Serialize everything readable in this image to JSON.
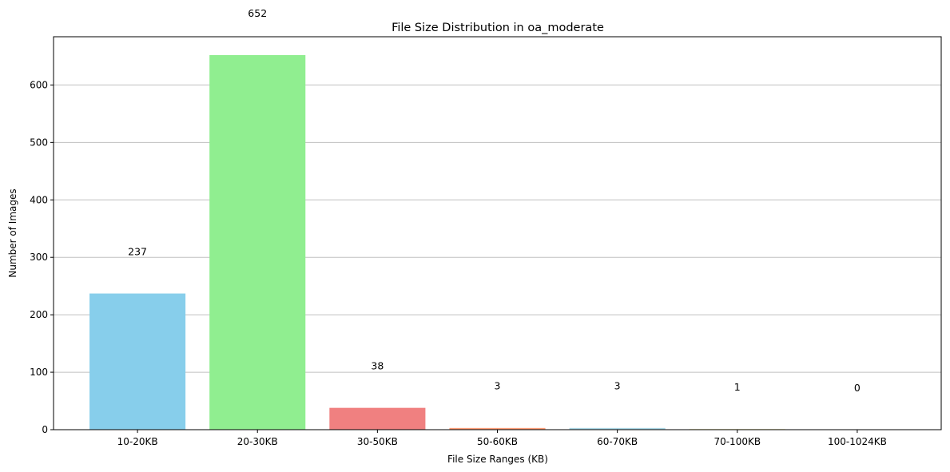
{
  "chart_data": {
    "type": "bar",
    "title": "File Size Distribution in oa_moderate",
    "xlabel": "File Size Ranges (KB)",
    "ylabel": "Number of Images",
    "categories": [
      "10-20KB",
      "20-30KB",
      "30-50KB",
      "50-60KB",
      "60-70KB",
      "70-100KB",
      "100-1024KB"
    ],
    "values": [
      237,
      652,
      38,
      3,
      3,
      1,
      0
    ],
    "data_labels": [
      "237",
      "652",
      "38",
      "3",
      "3",
      "1",
      "0"
    ],
    "colors": [
      "#87ceeb",
      "#90ee90",
      "#f08080",
      "#ffa07a",
      "#add8e6",
      "#f0e68c",
      "#dda0dd"
    ],
    "ylim": [
      0,
      684
    ],
    "yticks": [
      0,
      100,
      200,
      300,
      400,
      500,
      600
    ],
    "grid": "y",
    "legend": "none"
  }
}
